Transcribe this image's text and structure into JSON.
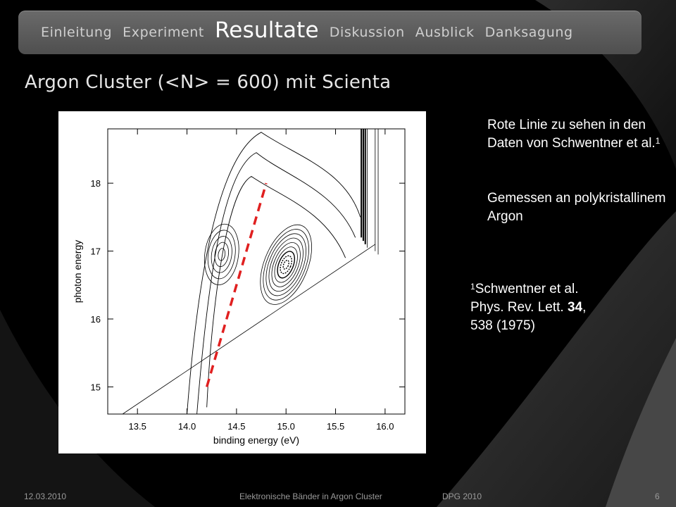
{
  "nav": {
    "items": [
      "Einleitung",
      "Experiment",
      "Resultate",
      "Diskussion",
      "Ausblick",
      "Danksagung"
    ],
    "active": "Resultate"
  },
  "slide": {
    "title": "Argon Cluster (<N> = 600) mit Scienta"
  },
  "notes": {
    "note1_text": "Rote Linie zu sehen in den Daten von Schwentner et al.",
    "note1_sup": "1",
    "note2_text": "Gemessen an polykristallinem Argon",
    "ref_sup": "1",
    "ref_line1": "Schwentner et al.",
    "ref_line2_prefix": "Phys. Rev. Lett. ",
    "ref_volume": "34",
    "ref_line2_suffix": ",",
    "ref_line3": "538 (1975)"
  },
  "footer": {
    "date": "12.03.2010",
    "title": "Elektronische Bänder in Argon Cluster",
    "conference": "DPG 2010",
    "page": "6"
  },
  "chart_data": {
    "type": "contour",
    "xlabel": "binding energy (eV)",
    "ylabel": "photon energy",
    "x_ticks": [
      "13.5",
      "14.0",
      "14.5",
      "15.0",
      "15.5",
      "16.0"
    ],
    "y_ticks": [
      "15",
      "16",
      "17",
      "18"
    ],
    "xlim": [
      13.2,
      16.2
    ],
    "ylim": [
      14.6,
      18.8
    ],
    "red_dashed_line": {
      "color": "#e02020",
      "x": [
        14.2,
        14.8
      ],
      "y": [
        15.0,
        18.0
      ]
    },
    "series": [
      {
        "x": 15.0,
        "y": 16.8,
        "rx": 0.22,
        "ry": 0.62,
        "rot": 22
      },
      {
        "x": 14.35,
        "y": 16.95,
        "rx": 0.17,
        "ry": 0.45,
        "rot": 8
      }
    ]
  }
}
